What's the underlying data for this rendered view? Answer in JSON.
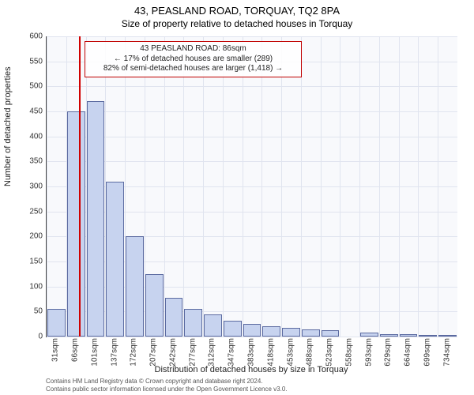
{
  "title": "43, PEASLAND ROAD, TORQUAY, TQ2 8PA",
  "subtitle": "Size of property relative to detached houses in Torquay",
  "chart": {
    "type": "histogram",
    "background_color": "#f8f9fc",
    "grid_color": "#e0e4ef",
    "bar_fill": "#c7d3ef",
    "bar_border": "#5b6aa0",
    "marker_color": "#d00000",
    "marker_x_value": 86,
    "ylim": [
      0,
      600
    ],
    "ytick_step": 50,
    "ylabel": "Number of detached properties",
    "xlabel": "Distribution of detached houses by size in Torquay",
    "x_categories": [
      "31sqm",
      "66sqm",
      "101sqm",
      "137sqm",
      "172sqm",
      "207sqm",
      "242sqm",
      "277sqm",
      "312sqm",
      "347sqm",
      "383sqm",
      "418sqm",
      "453sqm",
      "488sqm",
      "523sqm",
      "558sqm",
      "593sqm",
      "629sqm",
      "664sqm",
      "699sqm",
      "734sqm"
    ],
    "bar_values": [
      55,
      450,
      470,
      310,
      200,
      125,
      78,
      55,
      45,
      32,
      25,
      20,
      18,
      15,
      12,
      0,
      8,
      5,
      4,
      3,
      2
    ],
    "annotation": {
      "lines": [
        "43 PEASLAND ROAD: 86sqm",
        "← 17% of detached houses are smaller (289)",
        "82% of semi-detached houses are larger (1,418) →"
      ],
      "border_color": "#c00000"
    },
    "title_fontsize": 13,
    "label_fontsize": 11,
    "tick_fontsize": 10
  },
  "footer": {
    "line1": "Contains HM Land Registry data © Crown copyright and database right 2024.",
    "line2": "Contains public sector information licensed under the Open Government Licence v3.0."
  }
}
